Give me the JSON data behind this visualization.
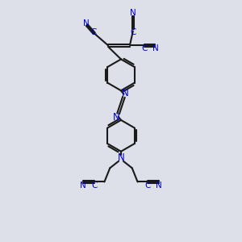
{
  "bg": "#dde0e8",
  "bc": "#1a1a1a",
  "tc": "#0000cc",
  "lw": 1.5,
  "fs": 7.5,
  "figsize": [
    3.0,
    3.0
  ],
  "dpi": 100,
  "xlim": [
    1.5,
    8.5
  ],
  "ylim": [
    0.5,
    13.5
  ]
}
